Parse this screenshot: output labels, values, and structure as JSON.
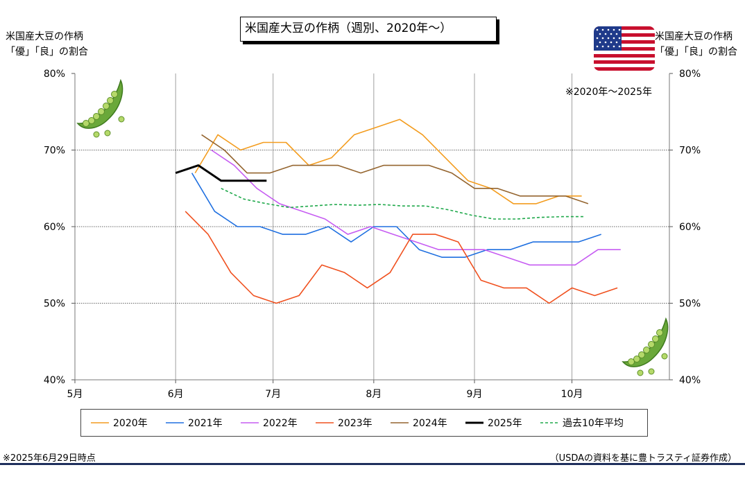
{
  "chart_data": {
    "type": "line",
    "title": "米国産大豆の作柄（週別、2020年～）",
    "ylabel_left": [
      "米国産大豆の作柄",
      "「優」「良」の割合"
    ],
    "ylabel_right": [
      "米国産大豆の作柄",
      "「優」「良」の割合"
    ],
    "annotation": "※2020年～2025年",
    "ylim": [
      0.4,
      0.8
    ],
    "yticks": [
      "40%",
      "50%",
      "60%",
      "70%",
      "80%"
    ],
    "ytick_values": [
      0.4,
      0.5,
      0.6,
      0.7,
      0.8
    ],
    "xlim": [
      "05-01",
      "10-31"
    ],
    "xticks": [
      "5月",
      "6月",
      "7月",
      "8月",
      "9月",
      "10月"
    ],
    "xtick_dates": [
      "05-01",
      "06-01",
      "07-01",
      "08-01",
      "09-01",
      "10-01"
    ],
    "grid": {
      "horizontal": true,
      "vertical": true
    },
    "legend_position": "bottom",
    "series": [
      {
        "name": "2020年",
        "color": "#f39c1e",
        "style": "solid",
        "x": [
          "06-07",
          "06-14",
          "06-21",
          "06-28",
          "07-05",
          "07-12",
          "07-19",
          "07-26",
          "08-02",
          "08-09",
          "08-16",
          "08-23",
          "08-30",
          "09-06",
          "09-13",
          "09-20",
          "09-27",
          "10-04"
        ],
        "y": [
          0.67,
          0.72,
          0.7,
          0.71,
          0.71,
          0.68,
          0.69,
          0.72,
          0.73,
          0.74,
          0.72,
          0.69,
          0.66,
          0.65,
          0.63,
          0.63,
          0.64,
          0.64
        ]
      },
      {
        "name": "2021年",
        "color": "#1e6fe0",
        "style": "solid",
        "x": [
          "06-06",
          "06-13",
          "06-20",
          "06-27",
          "07-04",
          "07-11",
          "07-18",
          "07-25",
          "08-01",
          "08-08",
          "08-15",
          "08-22",
          "08-29",
          "09-05",
          "09-12",
          "09-19",
          "09-26",
          "10-03",
          "10-10"
        ],
        "y": [
          0.67,
          0.62,
          0.6,
          0.6,
          0.59,
          0.59,
          0.6,
          0.58,
          0.6,
          0.6,
          0.57,
          0.56,
          0.56,
          0.57,
          0.57,
          0.58,
          0.58,
          0.58,
          0.59
        ]
      },
      {
        "name": "2022年",
        "color": "#c65cf2",
        "style": "solid",
        "x": [
          "06-12",
          "06-19",
          "06-26",
          "07-03",
          "07-10",
          "07-17",
          "07-24",
          "07-31",
          "08-07",
          "08-14",
          "08-21",
          "08-28",
          "09-04",
          "09-11",
          "09-18",
          "09-25",
          "10-02",
          "10-09",
          "10-16"
        ],
        "y": [
          0.7,
          0.68,
          0.65,
          0.63,
          0.62,
          0.61,
          0.59,
          0.6,
          0.59,
          0.58,
          0.57,
          0.57,
          0.57,
          0.56,
          0.55,
          0.55,
          0.55,
          0.57,
          0.57
        ]
      },
      {
        "name": "2023年",
        "color": "#f0501e",
        "style": "solid",
        "x": [
          "06-04",
          "06-11",
          "06-18",
          "06-25",
          "07-02",
          "07-09",
          "07-16",
          "07-23",
          "07-30",
          "08-06",
          "08-13",
          "08-20",
          "08-27",
          "09-03",
          "09-10",
          "09-17",
          "09-24",
          "10-01",
          "10-08",
          "10-15"
        ],
        "y": [
          0.62,
          0.59,
          0.54,
          0.51,
          0.5,
          0.51,
          0.55,
          0.54,
          0.52,
          0.54,
          0.59,
          0.59,
          0.58,
          0.53,
          0.52,
          0.52,
          0.5,
          0.52,
          0.51,
          0.52
        ]
      },
      {
        "name": "2024年",
        "color": "#94642e",
        "style": "solid",
        "x": [
          "06-09",
          "06-16",
          "06-23",
          "06-30",
          "07-07",
          "07-14",
          "07-21",
          "07-28",
          "08-04",
          "08-11",
          "08-18",
          "08-25",
          "09-01",
          "09-08",
          "09-15",
          "09-22",
          "09-29",
          "10-06"
        ],
        "y": [
          0.72,
          0.7,
          0.67,
          0.67,
          0.68,
          0.68,
          0.68,
          0.67,
          0.68,
          0.68,
          0.68,
          0.67,
          0.65,
          0.65,
          0.64,
          0.64,
          0.64,
          0.63
        ]
      },
      {
        "name": "2025年",
        "color": "#000000",
        "style": "solid-bold",
        "x": [
          "06-01",
          "06-08",
          "06-15",
          "06-22",
          "06-29"
        ],
        "y": [
          0.67,
          0.68,
          0.66,
          0.66,
          0.66
        ]
      },
      {
        "name": "過去10年平均",
        "color": "#1ea84a",
        "style": "dashed",
        "x": [
          "06-15",
          "06-22",
          "06-29",
          "07-06",
          "07-13",
          "07-20",
          "07-27",
          "08-03",
          "08-10",
          "08-17",
          "08-24",
          "08-31",
          "09-07",
          "09-14",
          "09-21",
          "09-28",
          "10-05"
        ],
        "y": [
          0.65,
          0.636,
          0.63,
          0.625,
          0.627,
          0.629,
          0.628,
          0.629,
          0.627,
          0.627,
          0.622,
          0.615,
          0.61,
          0.61,
          0.612,
          0.613,
          0.613
        ]
      }
    ]
  },
  "footer": {
    "left": "※2025年6月29日時点",
    "right": "（USDAの資料を基に豊トラスティ証券作成）"
  },
  "icons": {
    "left_decoration": "pea-pod-icon",
    "right_decoration": "pea-pod-icon",
    "flag": "us-flag-icon"
  }
}
